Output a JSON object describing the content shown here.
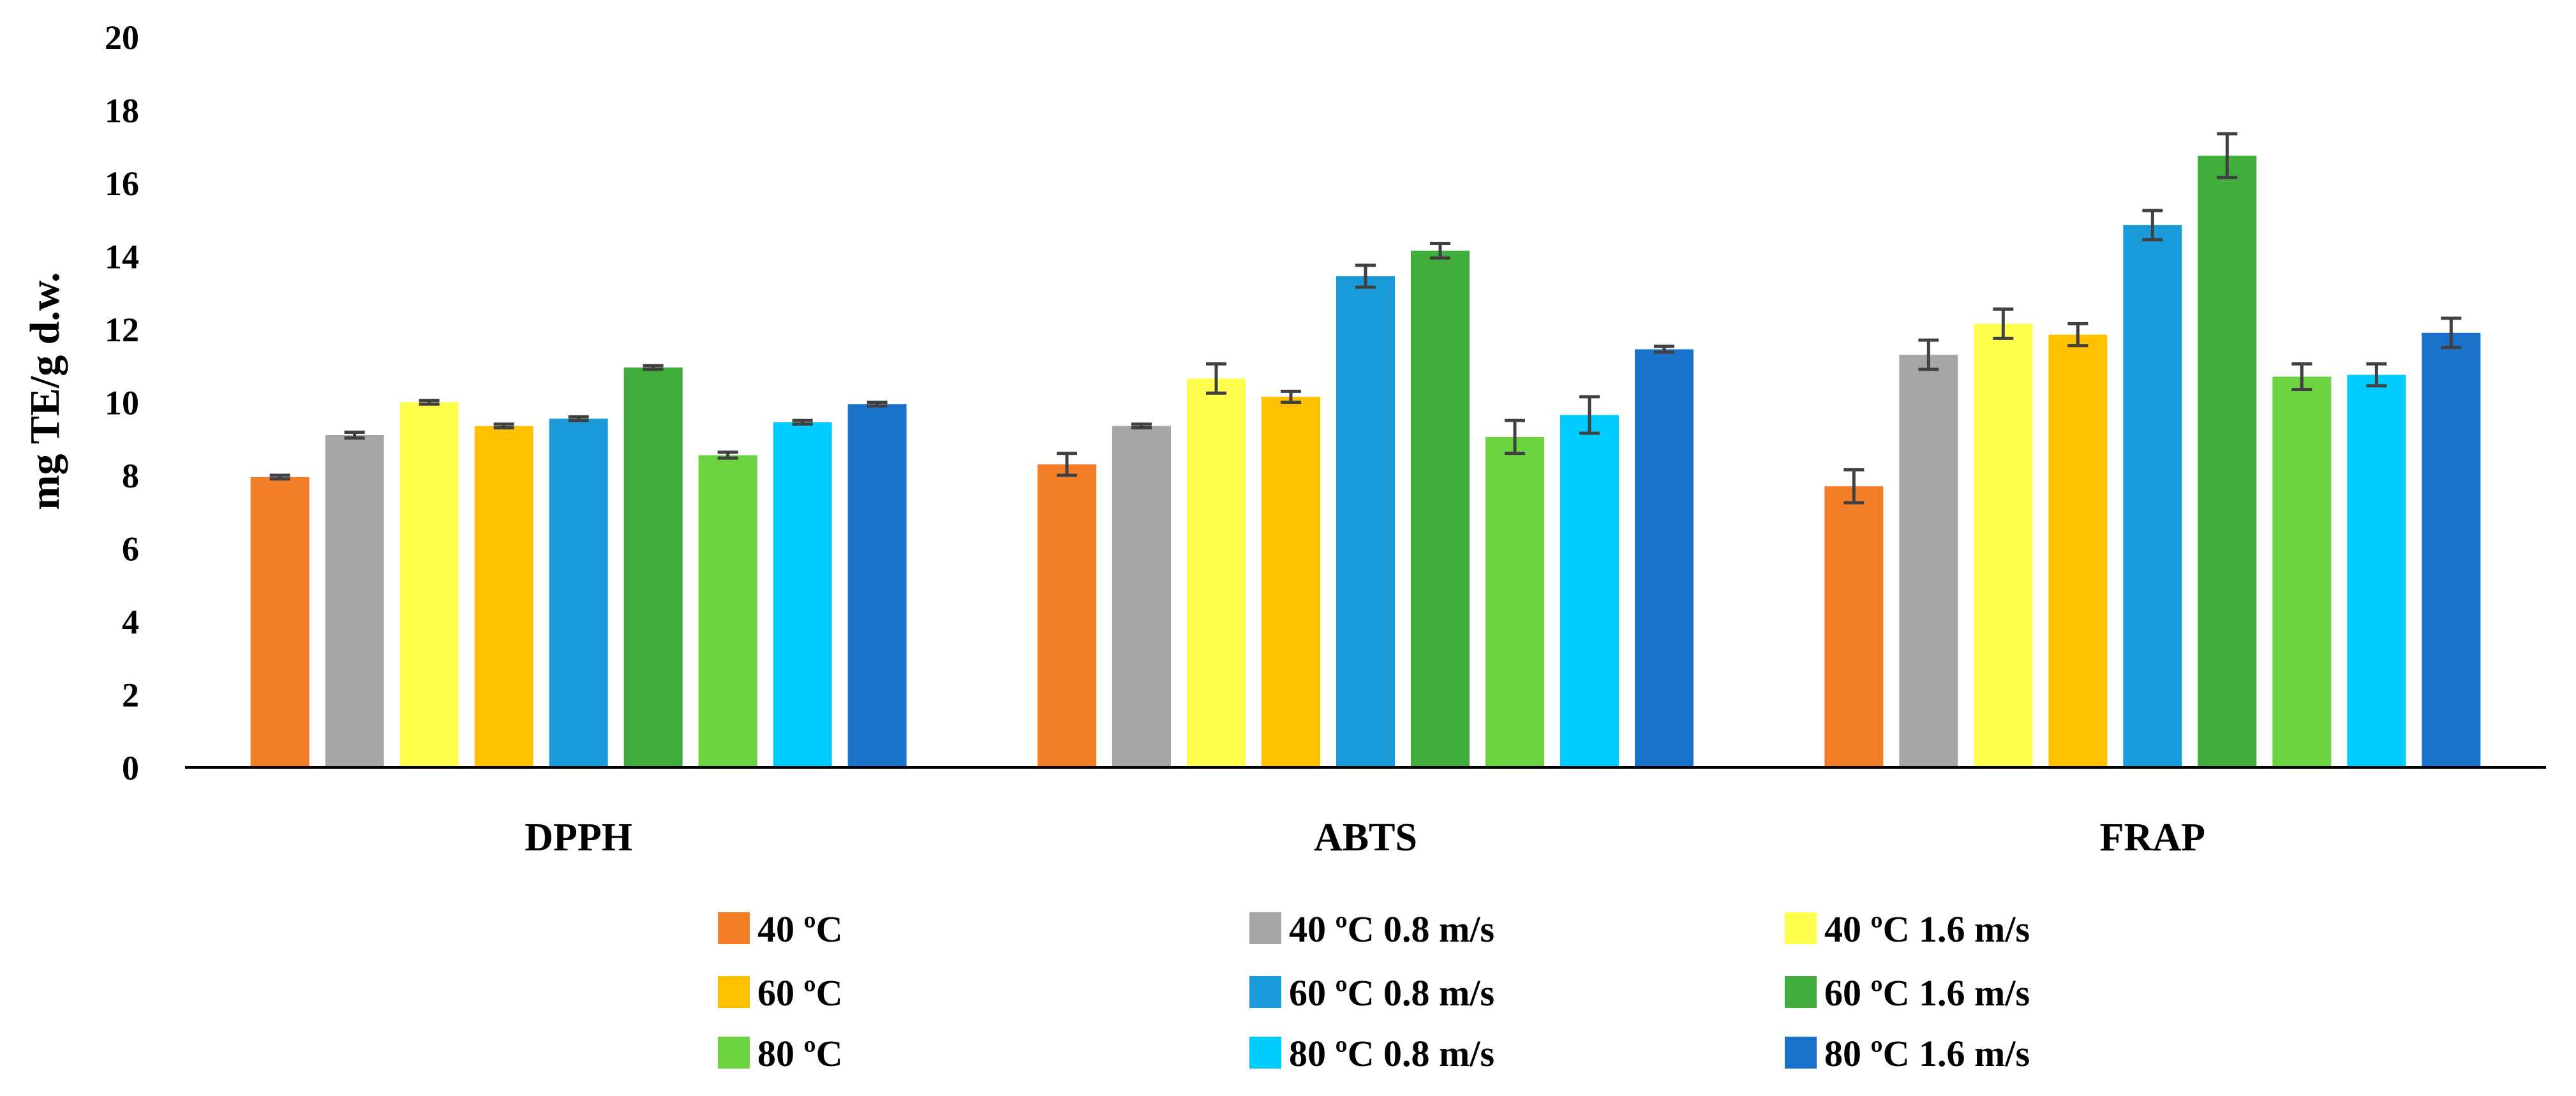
{
  "chart_data": {
    "type": "bar",
    "title": "",
    "xlabel": "",
    "ylabel": "mg TE/g d.w.",
    "ylim": [
      0,
      20
    ],
    "yticks": [
      0,
      2,
      4,
      6,
      8,
      10,
      12,
      14,
      16,
      18,
      20
    ],
    "grid": false,
    "legend_position": "bottom",
    "categories": [
      "DPPH",
      "ABTS",
      "FRAP"
    ],
    "series": [
      {
        "name": "40 ºC",
        "color": "#F57E28",
        "values": [
          7.95,
          8.3,
          7.7
        ],
        "errors": [
          0.05,
          0.3,
          0.45
        ]
      },
      {
        "name": "40 ºC 0.8 m/s",
        "color": "#A6A6A6",
        "values": [
          9.1,
          9.35,
          11.3
        ],
        "errors": [
          0.08,
          0.05,
          0.4
        ]
      },
      {
        "name": "40 ºC 1.6 m/s",
        "color": "#FFFF4D",
        "values": [
          10.0,
          10.65,
          12.15
        ],
        "errors": [
          0.05,
          0.4,
          0.4
        ]
      },
      {
        "name": "60 ºC",
        "color": "#FFC000",
        "values": [
          9.35,
          10.15,
          11.85
        ],
        "errors": [
          0.05,
          0.15,
          0.3
        ]
      },
      {
        "name": "60 ºC 0.8 m/s",
        "color": "#1A9AD8",
        "values": [
          9.55,
          13.45,
          14.85
        ],
        "errors": [
          0.05,
          0.3,
          0.4
        ]
      },
      {
        "name": "60 ºC 1.6 m/s",
        "color": "#41AD3C",
        "values": [
          10.95,
          14.15,
          16.75
        ],
        "errors": [
          0.05,
          0.2,
          0.6
        ]
      },
      {
        "name": "80 ºC",
        "color": "#6CD43F",
        "values": [
          8.55,
          9.05,
          10.7
        ],
        "errors": [
          0.08,
          0.45,
          0.35
        ]
      },
      {
        "name": "80 ºC 0.8 m/s",
        "color": "#00CCFF",
        "values": [
          9.45,
          9.65,
          10.75
        ],
        "errors": [
          0.05,
          0.5,
          0.3
        ]
      },
      {
        "name": "80 ºC 1.6 m/s",
        "color": "#1A72CA",
        "values": [
          9.95,
          11.45,
          11.9
        ],
        "errors": [
          0.05,
          0.08,
          0.4
        ]
      }
    ]
  }
}
